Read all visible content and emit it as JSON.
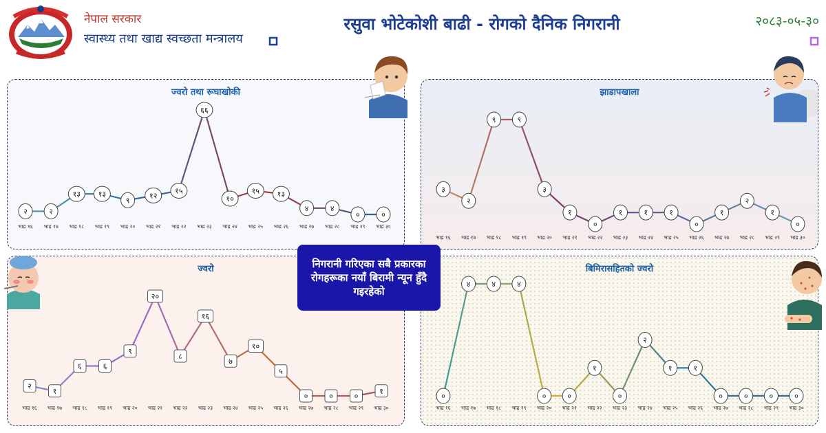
{
  "header": {
    "government": "नेपाल सरकार",
    "ministry": "स्वास्थ्य तथा खाद्य स्वच्छता मन्त्रालय",
    "title": "रसुवा भोटेकोशी बाढी - रोगको दैनिक निगरानी",
    "date": "२०८३-०५-३०",
    "emblem_icon": "nepal-emblem-icon"
  },
  "callout": "निगरानी गरिएका सबै प्रकारका रोगहरूका नयाँ बिरामी न्यून हुँदै गइरहेको",
  "colors": {
    "accent": "#1e3f91",
    "callout_bg": "#1a17a8",
    "date": "#2e7d32"
  },
  "chart_data": [
    {
      "type": "line",
      "title": "ज्वरो तथा रूघाखोकी",
      "categories": [
        "भाद्र १६",
        "भाद्र १७",
        "भाद्र १८",
        "भाद्र १९",
        "भाद्र २०",
        "भाद्र २१",
        "भाद्र २२",
        "भाद्र २३",
        "भाद्र २४",
        "भाद्र २५",
        "भाद्र २६",
        "भाद्र २७",
        "भाद्र २८",
        "भाद्र २९",
        "भाद्र ३०"
      ],
      "values": [
        2,
        2,
        13,
        13,
        9,
        12,
        15,
        66,
        10,
        15,
        13,
        4,
        4,
        0,
        0
      ],
      "labels": [
        "२",
        "२",
        "१३",
        "१३",
        "९",
        "१२",
        "१५",
        "६६",
        "१०",
        "१५",
        "१३",
        "४",
        "४",
        "०",
        "०"
      ],
      "marker": "circle",
      "line_colors": [
        "#5b9bb5",
        "#2a6a9a",
        "#b03040",
        "#1f6e8c"
      ]
    },
    {
      "type": "line",
      "title": "झाडापखाला",
      "categories": [
        "भाद्र १६",
        "भाद्र १७",
        "भाद्र १८",
        "भाद्र १९",
        "भाद्र २०",
        "भाद्र २१",
        "भाद्र २२",
        "भाद्र २३",
        "भाद्र २४",
        "भाद्र २५",
        "भाद्र २६",
        "भाद्र २७",
        "भाद्र २८",
        "भाद्र २९",
        "भाद्र ३०"
      ],
      "values": [
        3,
        2,
        9,
        9,
        3,
        1,
        0,
        1,
        1,
        1,
        0,
        1,
        2,
        1,
        0
      ],
      "labels": [
        "३",
        "२",
        "९",
        "९",
        "३",
        "१",
        "०",
        "१",
        "१",
        "१",
        "०",
        "१",
        "२",
        "१",
        "०"
      ],
      "marker": "circle",
      "line_colors": [
        "#c89060",
        "#7a3a70",
        "#5a6a9a",
        "#6aa0b8"
      ]
    },
    {
      "type": "line",
      "title": "ज्वरो",
      "categories": [
        "भाद्र १६",
        "भाद्र १७",
        "भाद्र १८",
        "भाद्र १९",
        "भाद्र २०",
        "भाद्र २१",
        "भाद्र २२",
        "भाद्र २३",
        "भाद्र २४",
        "भाद्र २५",
        "भाद्र २६",
        "भाद्र २७",
        "भाद्र २८",
        "भाद्र २९",
        "भाद्र ३०"
      ],
      "values": [
        2,
        1,
        6,
        6,
        9,
        20,
        8,
        16,
        7,
        10,
        5,
        0,
        0,
        0,
        1
      ],
      "labels": [
        "२",
        "१",
        "६",
        "६",
        "९",
        "२०",
        "८",
        "१६",
        "७",
        "१०",
        "५",
        "०",
        "०",
        "०",
        "१"
      ],
      "marker": "square",
      "line_colors": [
        "#7d8fd0",
        "#9a6ac8",
        "#c07030",
        "#a05070"
      ]
    },
    {
      "type": "line",
      "title": "बिमिरासहितको ज्वरो",
      "categories": [
        "भाद्र १६",
        "भाद्र १७",
        "भाद्र १८",
        "भाद्र १९",
        "भाद्र २०",
        "भाद्र २१",
        "भाद्र २२",
        "भाद्र २३",
        "भाद्र २४",
        "भाद्र २५",
        "भाद्र २६",
        "भाद्र २७",
        "भाद्र २८",
        "भाद्र २९",
        "भाद्र ३०"
      ],
      "values": [
        0,
        4,
        4,
        4,
        0,
        0,
        1,
        0,
        2,
        1,
        1,
        0,
        0,
        0,
        0
      ],
      "labels": [
        "०",
        "४",
        "४",
        "४",
        "०",
        "०",
        "१",
        "०",
        "२",
        "१",
        "१",
        "०",
        "०",
        "०",
        "०"
      ],
      "marker": "circle",
      "line_colors": [
        "#3a9a9a",
        "#d8b030",
        "#2a7aa0",
        "#2a6a9a"
      ]
    }
  ]
}
